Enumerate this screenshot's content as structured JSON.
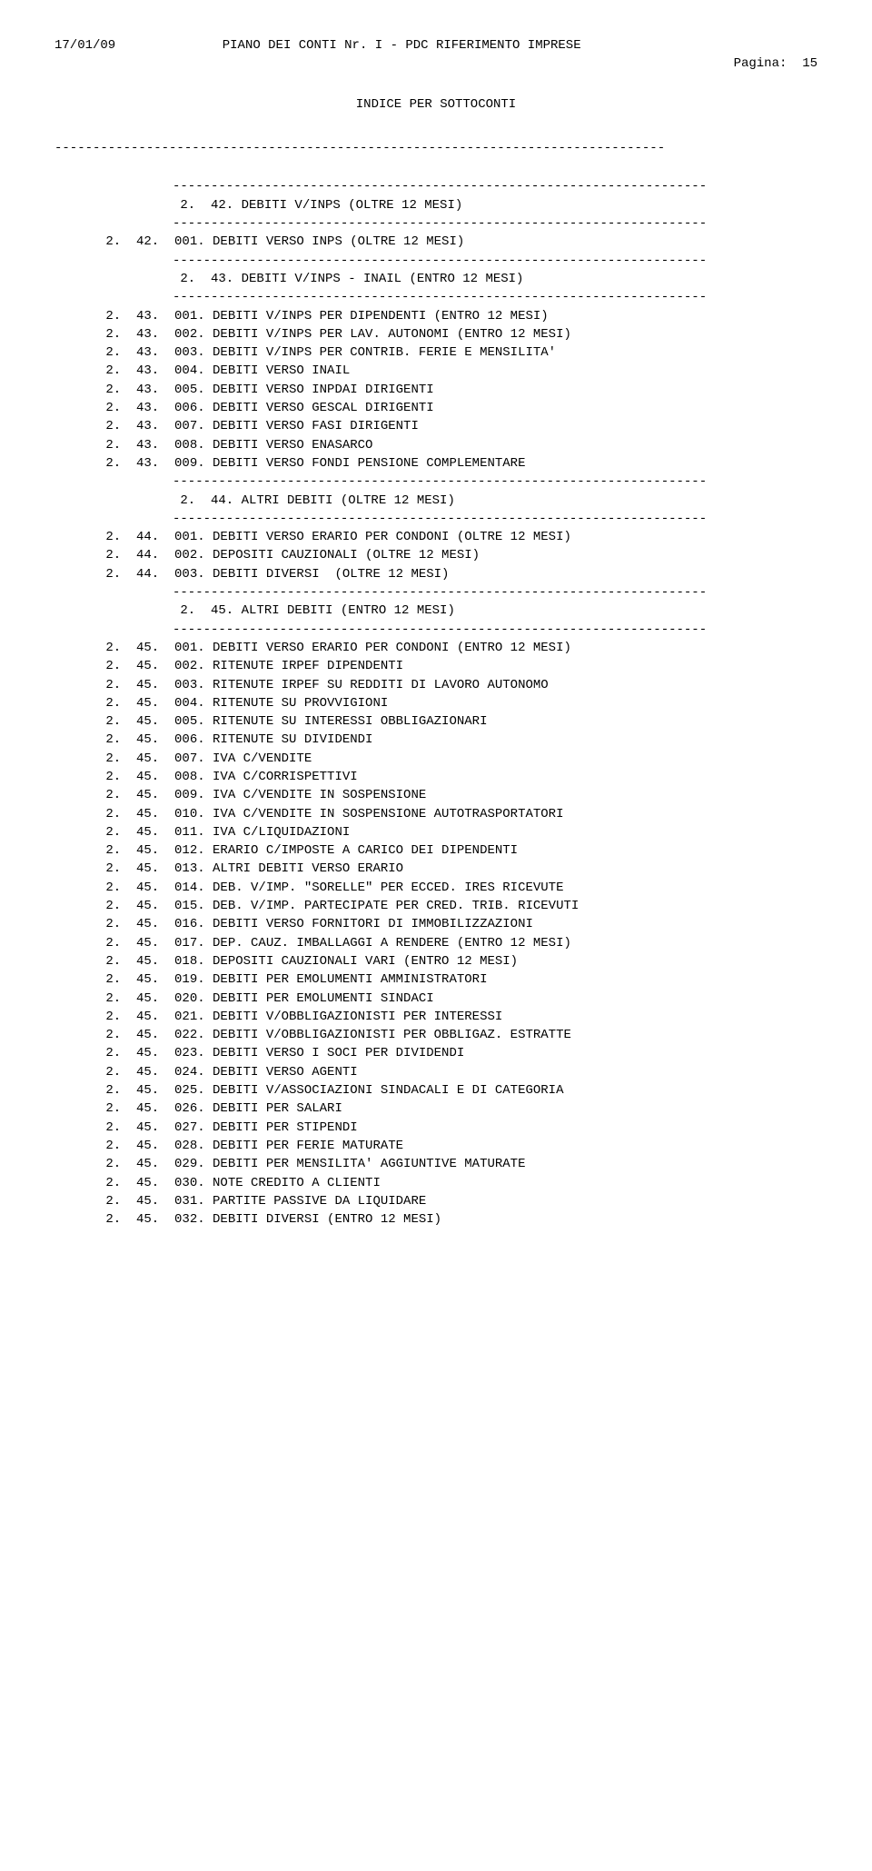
{
  "header": {
    "date": "17/01/09",
    "title": "PIANO DEI CONTI Nr. I - PDC RIFERIMENTO IMPRESE",
    "page_label": "Pagina:",
    "page_num": "15",
    "subtitle": "INDICE PER SOTTOCONTI"
  },
  "sep_full": "--------------------------------------------------------------------------------",
  "sep_section": "----------------------------------------------------------------------",
  "sections": [
    {
      "heading": " 2.  42. DEBITI V/INPS (OLTRE 12 MESI)",
      "details": [
        " 2.  42.  001. DEBITI VERSO INPS (OLTRE 12 MESI)"
      ]
    },
    {
      "heading": " 2.  43. DEBITI V/INPS - INAIL (ENTRO 12 MESI)",
      "details": [
        " 2.  43.  001. DEBITI V/INPS PER DIPENDENTI (ENTRO 12 MESI)",
        " 2.  43.  002. DEBITI V/INPS PER LAV. AUTONOMI (ENTRO 12 MESI)",
        " 2.  43.  003. DEBITI V/INPS PER CONTRIB. FERIE E MENSILITA'",
        " 2.  43.  004. DEBITI VERSO INAIL",
        " 2.  43.  005. DEBITI VERSO INPDAI DIRIGENTI",
        " 2.  43.  006. DEBITI VERSO GESCAL DIRIGENTI",
        " 2.  43.  007. DEBITI VERSO FASI DIRIGENTI",
        " 2.  43.  008. DEBITI VERSO ENASARCO",
        " 2.  43.  009. DEBITI VERSO FONDI PENSIONE COMPLEMENTARE"
      ]
    },
    {
      "heading": " 2.  44. ALTRI DEBITI (OLTRE 12 MESI)",
      "details": [
        " 2.  44.  001. DEBITI VERSO ERARIO PER CONDONI (OLTRE 12 MESI)",
        " 2.  44.  002. DEPOSITI CAUZIONALI (OLTRE 12 MESI)",
        " 2.  44.  003. DEBITI DIVERSI  (OLTRE 12 MESI)"
      ]
    },
    {
      "heading": " 2.  45. ALTRI DEBITI (ENTRO 12 MESI)",
      "details": [
        " 2.  45.  001. DEBITI VERSO ERARIO PER CONDONI (ENTRO 12 MESI)",
        " 2.  45.  002. RITENUTE IRPEF DIPENDENTI",
        " 2.  45.  003. RITENUTE IRPEF SU REDDITI DI LAVORO AUTONOMO",
        " 2.  45.  004. RITENUTE SU PROVVIGIONI",
        " 2.  45.  005. RITENUTE SU INTERESSI OBBLIGAZIONARI",
        " 2.  45.  006. RITENUTE SU DIVIDENDI",
        " 2.  45.  007. IVA C/VENDITE",
        " 2.  45.  008. IVA C/CORRISPETTIVI",
        " 2.  45.  009. IVA C/VENDITE IN SOSPENSIONE",
        " 2.  45.  010. IVA C/VENDITE IN SOSPENSIONE AUTOTRASPORTATORI",
        " 2.  45.  011. IVA C/LIQUIDAZIONI",
        " 2.  45.  012. ERARIO C/IMPOSTE A CARICO DEI DIPENDENTI",
        " 2.  45.  013. ALTRI DEBITI VERSO ERARIO",
        " 2.  45.  014. DEB. V/IMP. \"SORELLE\" PER ECCED. IRES RICEVUTE",
        " 2.  45.  015. DEB. V/IMP. PARTECIPATE PER CRED. TRIB. RICEVUTI",
        " 2.  45.  016. DEBITI VERSO FORNITORI DI IMMOBILIZZAZIONI",
        " 2.  45.  017. DEP. CAUZ. IMBALLAGGI A RENDERE (ENTRO 12 MESI)",
        " 2.  45.  018. DEPOSITI CAUZIONALI VARI (ENTRO 12 MESI)",
        " 2.  45.  019. DEBITI PER EMOLUMENTI AMMINISTRATORI",
        " 2.  45.  020. DEBITI PER EMOLUMENTI SINDACI",
        " 2.  45.  021. DEBITI V/OBBLIGAZIONISTI PER INTERESSI",
        " 2.  45.  022. DEBITI V/OBBLIGAZIONISTI PER OBBLIGAZ. ESTRATTE",
        " 2.  45.  023. DEBITI VERSO I SOCI PER DIVIDENDI",
        " 2.  45.  024. DEBITI VERSO AGENTI",
        " 2.  45.  025. DEBITI V/ASSOCIAZIONI SINDACALI E DI CATEGORIA",
        " 2.  45.  026. DEBITI PER SALARI",
        " 2.  45.  027. DEBITI PER STIPENDI",
        " 2.  45.  028. DEBITI PER FERIE MATURATE",
        " 2.  45.  029. DEBITI PER MENSILITA' AGGIUNTIVE MATURATE",
        " 2.  45.  030. NOTE CREDITO A CLIENTI",
        " 2.  45.  031. PARTITE PASSIVE DA LIQUIDARE",
        " 2.  45.  032. DEBITI DIVERSI (ENTRO 12 MESI)"
      ]
    }
  ]
}
